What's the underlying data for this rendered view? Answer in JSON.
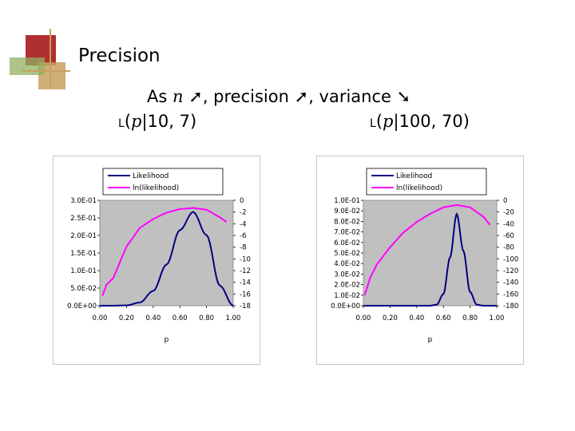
{
  "slide": {
    "title": "Precision",
    "subtitle": {
      "prefix": "As ",
      "var_n": "n",
      "arrow_up_1": "➚",
      "mid1": ", precision ",
      "arrow_up_2": "➚",
      "mid2": ",  variance ",
      "arrow_down": "➘"
    },
    "captions": [
      {
        "l": "L",
        "open": "(",
        "var": "p",
        "rest": "|10, 7)"
      },
      {
        "l": "L",
        "open": "(",
        "var": "p",
        "rest": "|100, 70)"
      }
    ],
    "colors": {
      "likelihood": "#000080",
      "ln_likelihood": "#ff00ff",
      "plot_bg": "#c0c0c0",
      "deco_red": "#b03030",
      "deco_tan": "#c8a060",
      "deco_green": "#90b060"
    }
  },
  "chart_data": [
    {
      "type": "line",
      "xlabel": "p",
      "ylabel": "",
      "xlim": [
        0,
        1
      ],
      "ylim": [
        0,
        0.3
      ],
      "y2lim": [
        -18,
        0
      ],
      "x_ticks": [
        "0.00",
        "0.20",
        "0.40",
        "0.60",
        "0.80",
        "1.00"
      ],
      "y_ticks": [
        "0.0E+00",
        "5.0E-02",
        "1.0E-01",
        "1.5E-01",
        "2.0E-01",
        "2.5E-01",
        "3.0E-01"
      ],
      "y2_ticks": [
        "0",
        "-2",
        "-4",
        "-6",
        "-8",
        "-10",
        "-12",
        "-14",
        "-16",
        "-18"
      ],
      "legend": [
        "Likelihood",
        "ln(likelihood)"
      ],
      "legend_position": "top",
      "grid": false,
      "n": 10,
      "k": 7,
      "series": [
        {
          "name": "Likelihood",
          "axis": "left",
          "x": [
            0.0,
            0.1,
            0.2,
            0.3,
            0.4,
            0.5,
            0.6,
            0.7,
            0.8,
            0.9,
            1.0
          ],
          "values": [
            0.0,
            0.0,
            0.001,
            0.009,
            0.042,
            0.117,
            0.215,
            0.267,
            0.201,
            0.057,
            0.0
          ]
        },
        {
          "name": "ln(likelihood)",
          "axis": "right",
          "x": [
            0.02,
            0.05,
            0.1,
            0.2,
            0.3,
            0.4,
            0.5,
            0.6,
            0.7,
            0.8,
            0.9,
            0.95
          ],
          "values": [
            -16.3,
            -14.4,
            -13.3,
            -7.9,
            -4.7,
            -3.2,
            -2.1,
            -1.5,
            -1.3,
            -1.6,
            -2.9,
            -3.7
          ]
        }
      ]
    },
    {
      "type": "line",
      "xlabel": "p",
      "ylabel": "",
      "xlim": [
        0,
        1
      ],
      "ylim": [
        0,
        0.1
      ],
      "y2lim": [
        -180,
        0
      ],
      "x_ticks": [
        "0.00",
        "0.20",
        "0.40",
        "0.60",
        "0.80",
        "1.00"
      ],
      "y_ticks": [
        "0.0E+00",
        "1.0E-02",
        "2.0E-02",
        "3.0E-02",
        "4.0E-02",
        "5.0E-02",
        "6.0E-02",
        "7.0E-02",
        "8.0E-02",
        "9.0E-02",
        "1.0E-01"
      ],
      "y2_ticks": [
        "0",
        "-20",
        "-40",
        "-60",
        "-80",
        "-100",
        "-120",
        "-140",
        "-160",
        "-180"
      ],
      "legend": [
        "Likelihood",
        "ln(likelihood)"
      ],
      "legend_position": "top",
      "grid": false,
      "n": 100,
      "k": 70,
      "series": [
        {
          "name": "Likelihood",
          "axis": "left",
          "x": [
            0.0,
            0.5,
            0.55,
            0.6,
            0.65,
            0.7,
            0.75,
            0.8,
            0.85,
            0.9,
            1.0
          ],
          "values": [
            0.0,
            0.0,
            0.001,
            0.011,
            0.046,
            0.087,
            0.052,
            0.013,
            0.001,
            0.0,
            0.0
          ]
        },
        {
          "name": "ln(likelihood)",
          "axis": "right",
          "x": [
            0.01,
            0.05,
            0.1,
            0.2,
            0.3,
            0.4,
            0.5,
            0.6,
            0.7,
            0.8,
            0.9,
            0.95
          ],
          "values": [
            -162,
            -133,
            -110,
            -80,
            -55,
            -37,
            -23,
            -12,
            -8,
            -12,
            -28,
            -42
          ]
        }
      ]
    }
  ]
}
